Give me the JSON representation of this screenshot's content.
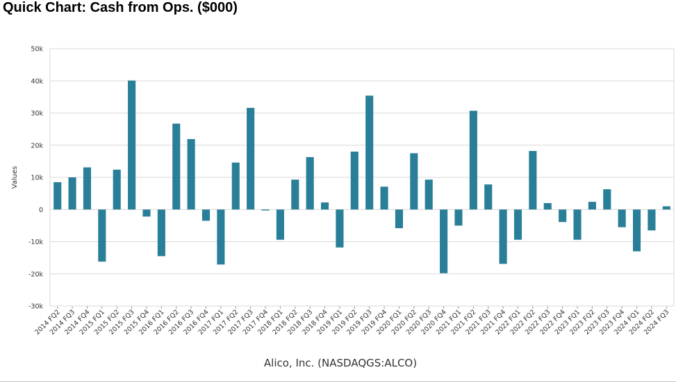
{
  "title": "Quick Chart: Cash from Ops. ($000)",
  "colors": {
    "bar": "#2a7f98",
    "grid": "#d9d9d9",
    "axis": "#999999"
  },
  "chart_data": {
    "type": "bar",
    "ylabel": "Values",
    "xlabel": "Alico, Inc. (NASDAQGS:ALCO)",
    "ylim": [
      -30000,
      50000
    ],
    "yticks": [
      {
        "value": 50000,
        "label": "50k"
      },
      {
        "value": 40000,
        "label": "40k"
      },
      {
        "value": 30000,
        "label": "30k"
      },
      {
        "value": 20000,
        "label": "20k"
      },
      {
        "value": 10000,
        "label": "10k"
      },
      {
        "value": 0,
        "label": "0"
      },
      {
        "value": -10000,
        "label": "-10k"
      },
      {
        "value": -20000,
        "label": "-20k"
      },
      {
        "value": -30000,
        "label": "-30k"
      }
    ],
    "grid": true,
    "categories": [
      "2014 FQ2",
      "2014 FQ3",
      "2014 FQ4",
      "2015 FQ1",
      "2015 FQ2",
      "2015 FQ3",
      "2015 FQ4",
      "2016 FQ1",
      "2016 FQ2",
      "2016 FQ3",
      "2016 FQ4",
      "2017 FQ1",
      "2017 FQ2",
      "2017 FQ3",
      "2017 FQ4",
      "2018 FQ1",
      "2018 FQ2",
      "2018 FQ3",
      "2018 FQ4",
      "2019 FQ1",
      "2019 FQ2",
      "2019 FQ3",
      "2019 FQ4",
      "2020 FQ1",
      "2020 FQ2",
      "2020 FQ3",
      "2020 FQ4",
      "2021 FQ1",
      "2021 FQ2",
      "2021 FQ3",
      "2021 FQ4",
      "2022 FQ1",
      "2022 FQ2",
      "2022 FQ3",
      "2022 FQ4",
      "2023 FQ1",
      "2023 FQ2",
      "2023 FQ3",
      "2023 FQ4",
      "2024 FQ1",
      "2024 FQ2",
      "2024 FQ3"
    ],
    "values": [
      8500,
      10000,
      13100,
      -16200,
      12400,
      40100,
      -2200,
      -14500,
      26700,
      21900,
      -3500,
      -17100,
      14600,
      31600,
      -300,
      -9400,
      9300,
      16300,
      2200,
      -11800,
      18000,
      35400,
      7100,
      -5800,
      17500,
      9300,
      -19800,
      -5000,
      30700,
      7800,
      -16900,
      -9400,
      18200,
      2000,
      -3900,
      -9400,
      2400,
      6300,
      -5500,
      -13000,
      -6500,
      1000
    ]
  }
}
